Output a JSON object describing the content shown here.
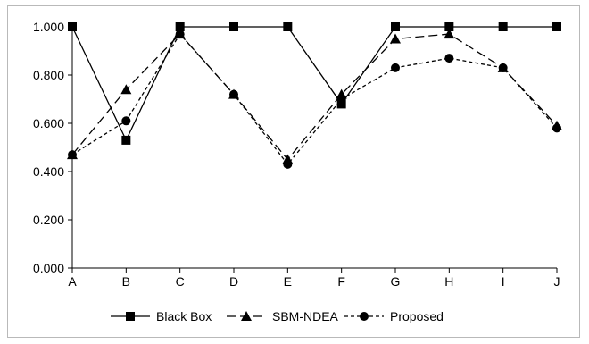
{
  "chart_data": {
    "type": "line",
    "title": "",
    "xlabel": "",
    "ylabel": "",
    "categories": [
      "A",
      "B",
      "C",
      "D",
      "E",
      "F",
      "G",
      "H",
      "I",
      "J"
    ],
    "ylim": [
      0,
      1
    ],
    "yticks": [
      0,
      0.2,
      0.4,
      0.6,
      0.8,
      1.0
    ],
    "ytick_labels": [
      "0.000",
      "0.200",
      "0.400",
      "0.600",
      "0.800",
      "1.000"
    ],
    "grid": false,
    "legend_position": "bottom",
    "series": [
      {
        "name": "Black Box",
        "marker": "square",
        "line_style": "solid",
        "color": "#000000",
        "values": [
          1.0,
          0.53,
          1.0,
          1.0,
          1.0,
          0.68,
          1.0,
          1.0,
          1.0,
          1.0
        ]
      },
      {
        "name": "SBM-NDEA",
        "marker": "triangle",
        "line_style": "long-dash",
        "color": "#000000",
        "values": [
          0.47,
          0.74,
          0.97,
          0.72,
          0.45,
          0.72,
          0.95,
          0.97,
          0.83,
          0.59
        ]
      },
      {
        "name": "Proposed",
        "marker": "circle",
        "line_style": "short-dash",
        "color": "#000000",
        "values": [
          0.47,
          0.61,
          0.97,
          0.72,
          0.43,
          0.7,
          0.83,
          0.87,
          0.83,
          0.58
        ]
      }
    ]
  }
}
